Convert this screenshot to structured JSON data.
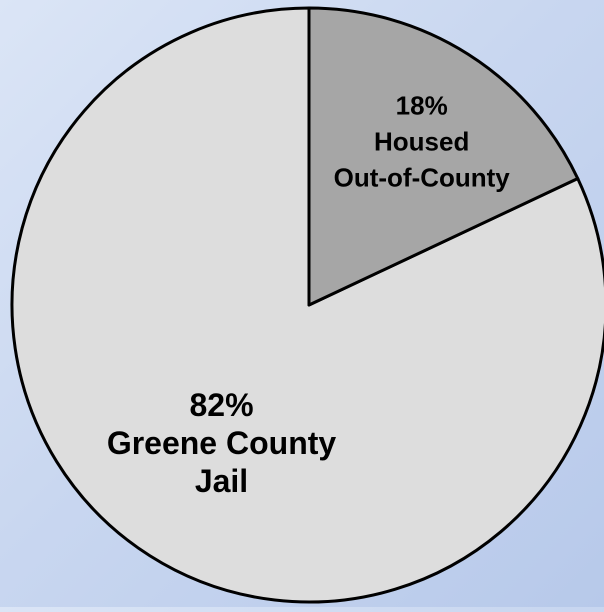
{
  "chart_data": {
    "type": "pie",
    "start_angle_deg": 0,
    "direction": "counterclockwise",
    "legend": "none",
    "slices": [
      {
        "value": 82,
        "color": "#dddddd",
        "label_lines": [
          "82%",
          "Greene County",
          "Jail"
        ]
      },
      {
        "value": 18,
        "color": "#a6a6a6",
        "label_lines": [
          "18%",
          "Housed",
          "Out-of-County"
        ]
      }
    ]
  }
}
